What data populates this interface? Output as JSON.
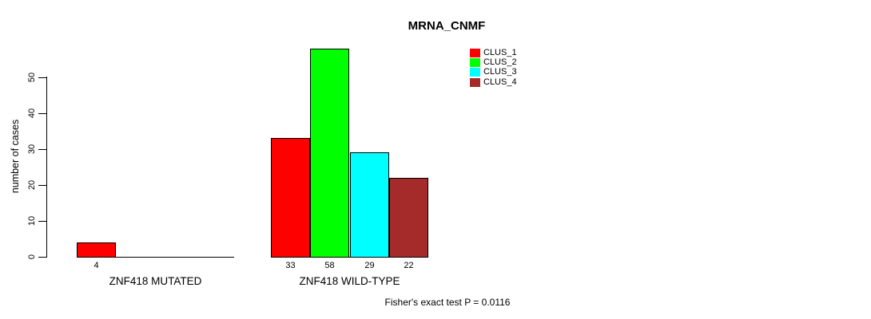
{
  "title": "MRNA_CNMF",
  "ylabel": "number of cases",
  "footer": "Fisher's exact test P = 0.0116",
  "colors": {
    "clus_1": "#ff0000",
    "clus_2": "#00ff00",
    "clus_3": "#00ffff",
    "clus_4": "#a52a2a",
    "axis": "#000000",
    "background": "#ffffff"
  },
  "legend": {
    "position": "top-right",
    "entries": [
      {
        "label": "CLUS_1",
        "color": "#ff0000"
      },
      {
        "label": "CLUS_2",
        "color": "#00ff00"
      },
      {
        "label": "CLUS_3",
        "color": "#00ffff"
      },
      {
        "label": "CLUS_4",
        "color": "#a52a2a"
      }
    ]
  },
  "chart_data": {
    "type": "bar",
    "title": "MRNA_CNMF",
    "xlabel": "",
    "ylabel": "number of cases",
    "categories": [
      "ZNF418 MUTATED",
      "ZNF418 WILD-TYPE"
    ],
    "series": [
      {
        "name": "CLUS_1",
        "color": "#ff0000",
        "values": [
          4,
          33
        ]
      },
      {
        "name": "CLUS_2",
        "color": "#00ff00",
        "values": [
          0,
          58
        ]
      },
      {
        "name": "CLUS_3",
        "color": "#00ffff",
        "values": [
          0,
          29
        ]
      },
      {
        "name": "CLUS_4",
        "color": "#a52a2a",
        "values": [
          0,
          22
        ]
      }
    ],
    "visible_bar_value_labels": [
      "4",
      "33",
      "58",
      "29",
      "22"
    ],
    "yticks": [
      0,
      10,
      20,
      30,
      40,
      50
    ],
    "ylim": [
      0,
      58
    ],
    "grid": false,
    "legend_position": "top-right",
    "annotation": "Fisher's exact test P = 0.0116"
  }
}
